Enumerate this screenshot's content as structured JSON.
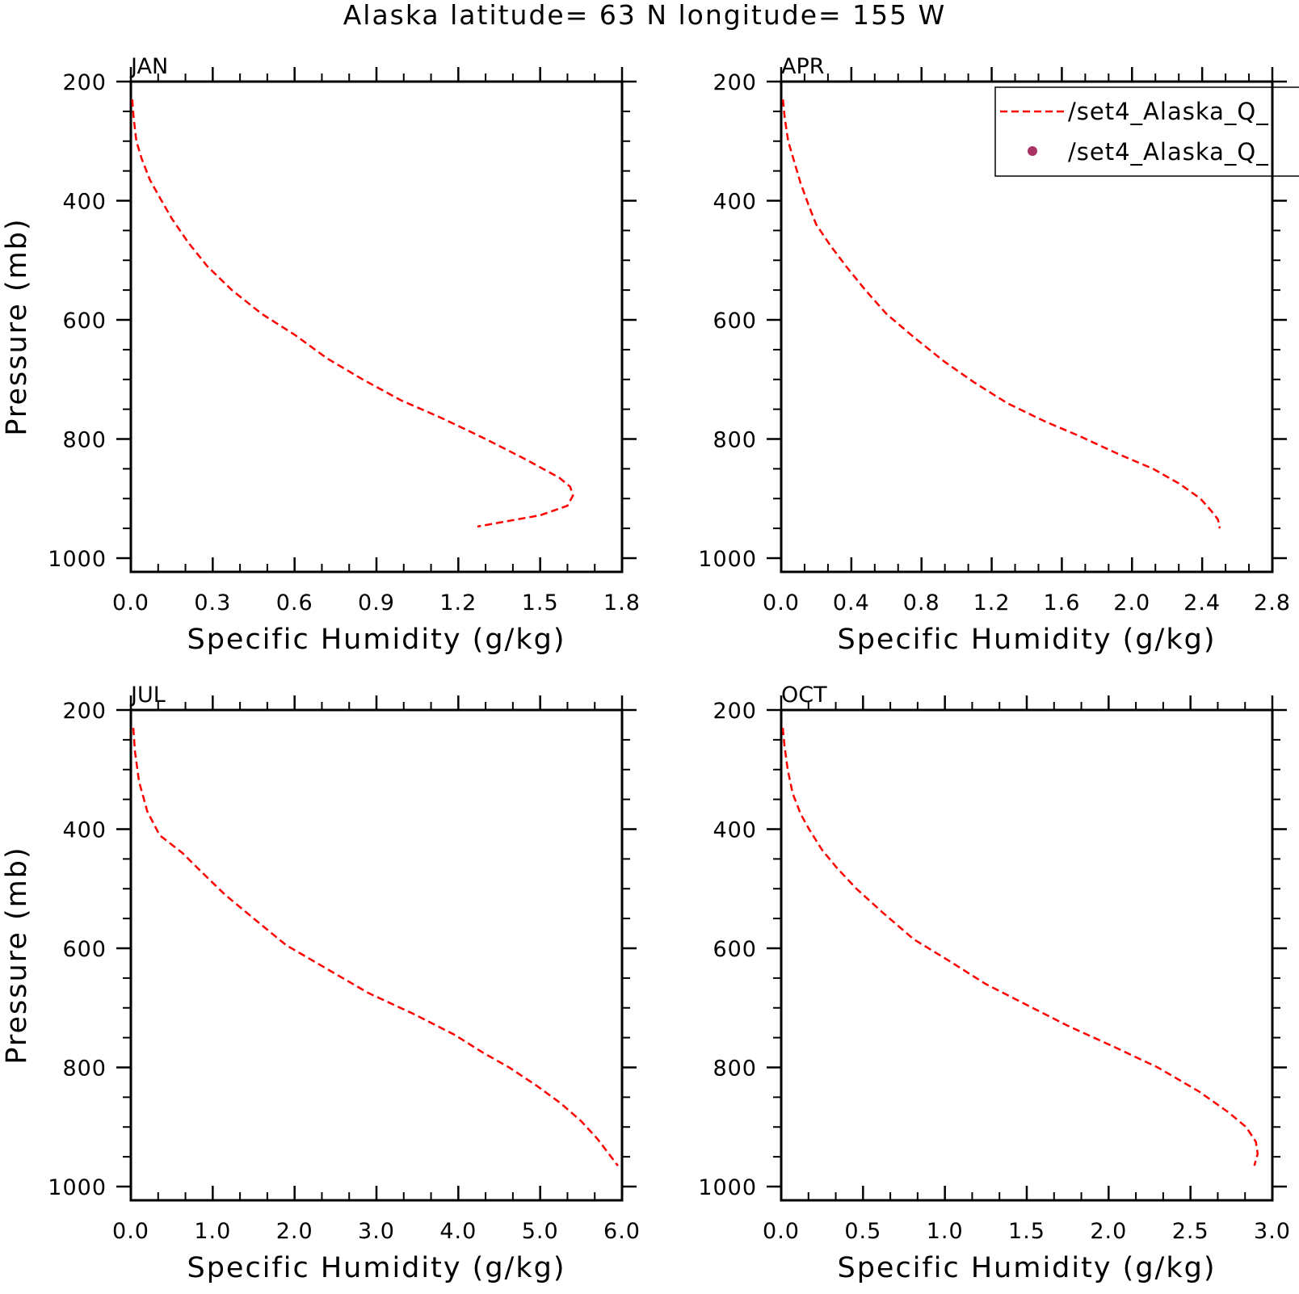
{
  "title": "Alaska  latitude= 63 N longitude= 155 W",
  "colors": {
    "series_line": "#ff0000",
    "series_marker": "#aa3366",
    "axis": "#000000",
    "background": "#ffffff"
  },
  "legend": {
    "position": "top-right of APR panel",
    "entries": [
      {
        "label": "/set4_Alaska_Q_",
        "style": "dashed-line"
      },
      {
        "label": "/set4_Alaska_Q_",
        "style": "dot-marker"
      }
    ]
  },
  "chart_data": [
    {
      "type": "line",
      "panel": "JAN",
      "title": "JAN",
      "xlabel": "Specific Humidity (g/kg)",
      "ylabel": "Pressure (mb)",
      "xlim": [
        0,
        1.8
      ],
      "ylim": [
        200,
        1000
      ],
      "y_inverted": true,
      "x_ticks": [
        "0.0",
        "0.3",
        "0.6",
        "0.9",
        "1.2",
        "1.5",
        "1.8"
      ],
      "x_tick_values": [
        0,
        0.3,
        0.6,
        0.9,
        1.2,
        1.5,
        1.8
      ],
      "y_ticks": [
        "200",
        "400",
        "600",
        "800",
        "1000"
      ],
      "y_tick_values": [
        200,
        400,
        600,
        800,
        1000
      ],
      "series": [
        {
          "line_style": "dashed",
          "x": [
            0.005,
            0.01,
            0.02,
            0.04,
            0.07,
            0.1,
            0.15,
            0.21,
            0.28,
            0.37,
            0.48,
            0.6,
            0.72,
            0.85,
            0.99,
            1.14,
            1.3,
            1.45,
            1.57,
            1.61,
            1.62,
            1.6,
            1.5,
            1.27
          ],
          "y": [
            230,
            260,
            300,
            330,
            365,
            390,
            430,
            470,
            510,
            550,
            590,
            625,
            665,
            700,
            735,
            765,
            800,
            835,
            865,
            880,
            895,
            912,
            928,
            947
          ]
        }
      ]
    },
    {
      "type": "line",
      "panel": "APR",
      "title": "APR",
      "xlabel": "Specific Humidity (g/kg)",
      "ylabel": "",
      "xlim": [
        0,
        2.8
      ],
      "ylim": [
        200,
        1000
      ],
      "y_inverted": true,
      "x_ticks": [
        "0.0",
        "0.4",
        "0.8",
        "1.2",
        "1.6",
        "2.0",
        "2.4",
        "2.8"
      ],
      "x_tick_values": [
        0,
        0.4,
        0.8,
        1.2,
        1.6,
        2.0,
        2.4,
        2.8
      ],
      "y_ticks": [
        "200",
        "400",
        "600",
        "800",
        "1000"
      ],
      "y_tick_values": [
        200,
        400,
        600,
        800,
        1000
      ],
      "series": [
        {
          "line_style": "dashed",
          "x": [
            0.01,
            0.02,
            0.04,
            0.07,
            0.11,
            0.16,
            0.2,
            0.28,
            0.37,
            0.48,
            0.6,
            0.76,
            0.93,
            1.1,
            1.29,
            1.5,
            1.7,
            1.92,
            2.12,
            2.27,
            2.39,
            2.45,
            2.49,
            2.5
          ],
          "y": [
            230,
            260,
            300,
            330,
            370,
            410,
            440,
            475,
            510,
            550,
            590,
            630,
            670,
            705,
            740,
            770,
            795,
            825,
            850,
            875,
            900,
            920,
            935,
            950
          ]
        }
      ]
    },
    {
      "type": "line",
      "panel": "JUL",
      "title": "JUL",
      "xlabel": "Specific Humidity (g/kg)",
      "ylabel": "Pressure (mb)",
      "xlim": [
        0,
        6.0
      ],
      "ylim": [
        200,
        1000
      ],
      "y_inverted": true,
      "x_ticks": [
        "0.0",
        "1.0",
        "2.0",
        "3.0",
        "4.0",
        "5.0",
        "6.0"
      ],
      "x_tick_values": [
        0,
        1,
        2,
        3,
        4,
        5,
        6
      ],
      "y_ticks": [
        "200",
        "400",
        "600",
        "800",
        "1000"
      ],
      "y_tick_values": [
        200,
        400,
        600,
        800,
        1000
      ],
      "series": [
        {
          "line_style": "dashed",
          "x": [
            0.03,
            0.05,
            0.1,
            0.2,
            0.35,
            0.63,
            0.85,
            1.15,
            1.5,
            1.9,
            2.4,
            2.9,
            3.45,
            3.95,
            4.3,
            4.62,
            4.95,
            5.25,
            5.5,
            5.7,
            5.95
          ],
          "y": [
            230,
            270,
            320,
            370,
            410,
            440,
            470,
            510,
            550,
            595,
            635,
            675,
            710,
            745,
            775,
            800,
            830,
            860,
            890,
            920,
            965
          ]
        }
      ]
    },
    {
      "type": "line",
      "panel": "OCT",
      "title": "OCT",
      "xlabel": "Specific Humidity (g/kg)",
      "ylabel": "",
      "xlim": [
        0,
        3.0
      ],
      "ylim": [
        200,
        1000
      ],
      "y_inverted": true,
      "x_ticks": [
        "0.0",
        "0.5",
        "1.0",
        "1.5",
        "2.0",
        "2.5",
        "3.0"
      ],
      "x_tick_values": [
        0,
        0.5,
        1.0,
        1.5,
        2.0,
        2.5,
        3.0
      ],
      "y_ticks": [
        "200",
        "400",
        "600",
        "800",
        "1000"
      ],
      "y_tick_values": [
        200,
        400,
        600,
        800,
        1000
      ],
      "series": [
        {
          "line_style": "dashed",
          "x": [
            0.01,
            0.02,
            0.04,
            0.07,
            0.12,
            0.17,
            0.25,
            0.34,
            0.46,
            0.62,
            0.81,
            1.02,
            1.25,
            1.5,
            1.75,
            2.03,
            2.3,
            2.55,
            2.73,
            2.84,
            2.9,
            2.91,
            2.89
          ],
          "y": [
            230,
            260,
            300,
            340,
            375,
            400,
            435,
            465,
            500,
            540,
            585,
            620,
            660,
            695,
            730,
            765,
            800,
            840,
            875,
            900,
            925,
            945,
            965
          ]
        }
      ]
    }
  ]
}
